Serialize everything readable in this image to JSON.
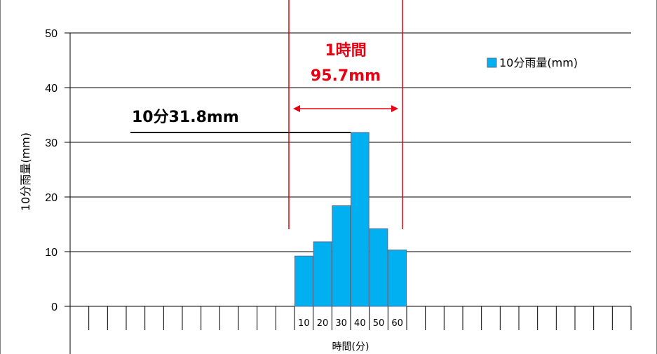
{
  "chart_data": {
    "type": "bar",
    "y_label": "10分雨量(mm)",
    "x_label": "時間(分)",
    "y_range": [
      0,
      50
    ],
    "y_ticks": [
      0,
      10,
      20,
      30,
      40,
      50
    ],
    "grid": true,
    "legend_position": "top-right",
    "slots_per_side": 30,
    "highlight_start_slot": 12,
    "categories": [
      "10",
      "20",
      "30",
      "40",
      "50",
      "60"
    ],
    "series": [
      {
        "name": "10分雨量(mm)",
        "color": "#00b0f0",
        "values": [
          9.2,
          11.8,
          18.4,
          31.8,
          14.2,
          10.3
        ]
      }
    ],
    "annotations": {
      "peak_label": "10分31.8mm",
      "hour_label_line1": "1時間",
      "hour_label_line2": "95.7mm",
      "red_color": "#e60012"
    }
  }
}
